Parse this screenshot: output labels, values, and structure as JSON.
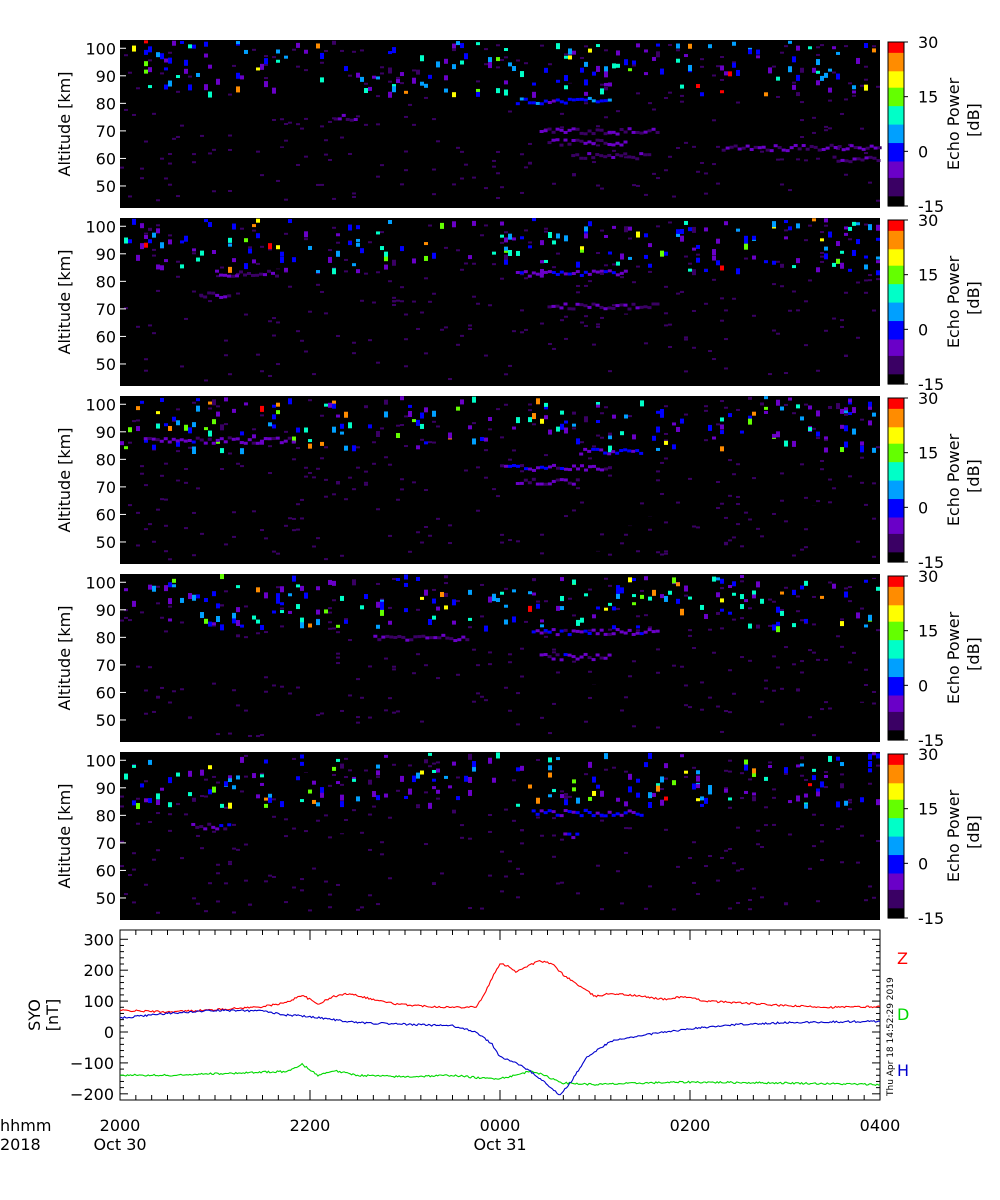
{
  "figure": {
    "timestamp": "Thu Apr 18 14:52:29 2019",
    "x_title_top": "hhmm",
    "x_title_bottom": "2018",
    "colorbar_label_line1": "Echo Power",
    "colorbar_label_line2": "[dB]",
    "colormap": [
      "#000000",
      "#3a0064",
      "#6a00c8",
      "#0000ff",
      "#00a0ff",
      "#00ffc8",
      "#64ff00",
      "#ffff00",
      "#ff8c00",
      "#ff0000"
    ]
  },
  "chart_data": [
    {
      "type": "heatmap",
      "panel": 1,
      "ylabel": "Altitude  [km]",
      "ylim": [
        42,
        103
      ],
      "yticks": [
        "50",
        "60",
        "70",
        "80",
        "90",
        "100"
      ],
      "zlim": [
        -15,
        30
      ],
      "cbar_ticks": [
        "-15",
        "0",
        "15",
        "30"
      ],
      "layers": [
        {
          "start": "2018-10-30T22:15",
          "end": "2018-10-30T22:30",
          "alt": 75,
          "db": -8
        },
        {
          "start": "2018-10-31T00:10",
          "end": "2018-10-31T01:10",
          "alt": 81,
          "db": -2
        },
        {
          "start": "2018-10-31T00:25",
          "end": "2018-10-31T01:40",
          "alt": 70,
          "db": -10
        },
        {
          "start": "2018-10-31T00:30",
          "end": "2018-10-31T01:20",
          "alt": 66,
          "db": -9
        },
        {
          "start": "2018-10-31T00:45",
          "end": "2018-10-31T01:35",
          "alt": 61,
          "db": -10
        },
        {
          "start": "2018-10-31T02:20",
          "end": "2018-10-31T04:00",
          "alt": 64,
          "db": -9
        },
        {
          "start": "2018-10-31T03:30",
          "end": "2018-10-31T04:00",
          "alt": 60,
          "db": -10
        }
      ]
    },
    {
      "type": "heatmap",
      "panel": 2,
      "ylabel": "Altitude  [km]",
      "ylim": [
        42,
        103
      ],
      "yticks": [
        "50",
        "60",
        "70",
        "80",
        "90",
        "100"
      ],
      "zlim": [
        -15,
        30
      ],
      "cbar_ticks": [
        "-15",
        "0",
        "15",
        "30"
      ],
      "layers": [
        {
          "start": "2018-10-30T21:00",
          "end": "2018-10-30T21:40",
          "alt": 83,
          "db": -9
        },
        {
          "start": "2018-10-30T20:50",
          "end": "2018-10-30T21:10",
          "alt": 75,
          "db": -10
        },
        {
          "start": "2018-10-31T00:10",
          "end": "2018-10-31T01:20",
          "alt": 83,
          "db": -4
        },
        {
          "start": "2018-10-31T00:30",
          "end": "2018-10-31T01:40",
          "alt": 71,
          "db": -10
        }
      ]
    },
    {
      "type": "heatmap",
      "panel": 3,
      "ylabel": "Altitude  [km]",
      "ylim": [
        42,
        103
      ],
      "yticks": [
        "50",
        "60",
        "70",
        "80",
        "90",
        "100"
      ],
      "zlim": [
        -15,
        30
      ],
      "cbar_ticks": [
        "-15",
        "0",
        "15",
        "30"
      ],
      "layers": [
        {
          "start": "2018-10-30T20:15",
          "end": "2018-10-30T21:50",
          "alt": 87,
          "db": -7
        },
        {
          "start": "2018-10-31T00:00",
          "end": "2018-10-31T01:10",
          "alt": 77,
          "db": -6
        },
        {
          "start": "2018-10-31T00:50",
          "end": "2018-10-31T01:30",
          "alt": 83,
          "db": -4
        },
        {
          "start": "2018-10-31T00:10",
          "end": "2018-10-31T00:50",
          "alt": 72,
          "db": -10
        }
      ]
    },
    {
      "type": "heatmap",
      "panel": 4,
      "ylabel": "Altitude  [km]",
      "ylim": [
        42,
        103
      ],
      "yticks": [
        "50",
        "60",
        "70",
        "80",
        "90",
        "100"
      ],
      "zlim": [
        -15,
        30
      ],
      "cbar_ticks": [
        "-15",
        "0",
        "15",
        "30"
      ],
      "layers": [
        {
          "start": "2018-10-31T00:20",
          "end": "2018-10-31T01:40",
          "alt": 82,
          "db": -6
        },
        {
          "start": "2018-10-31T00:25",
          "end": "2018-10-31T01:10",
          "alt": 73,
          "db": -7
        },
        {
          "start": "2018-10-30T22:40",
          "end": "2018-10-30T23:40",
          "alt": 80,
          "db": -10
        }
      ]
    },
    {
      "type": "heatmap",
      "panel": 5,
      "ylabel": "Altitude  [km]",
      "ylim": [
        42,
        103
      ],
      "yticks": [
        "50",
        "60",
        "70",
        "80",
        "90",
        "100"
      ],
      "zlim": [
        -15,
        30
      ],
      "cbar_ticks": [
        "-15",
        "0",
        "15",
        "30"
      ],
      "layers": [
        {
          "start": "2018-10-30T20:45",
          "end": "2018-10-30T21:10",
          "alt": 76,
          "db": -7
        },
        {
          "start": "2018-10-31T00:20",
          "end": "2018-10-31T01:30",
          "alt": 81,
          "db": -3
        },
        {
          "start": "2018-10-31T00:40",
          "end": "2018-10-31T00:50",
          "alt": 73,
          "db": -5
        }
      ]
    },
    {
      "type": "line",
      "ylabel_line1": "SYO",
      "ylabel_line2": "[nT]",
      "ylim": [
        -220,
        330
      ],
      "yticks": [
        {
          "v": 300,
          "label": "300"
        },
        {
          "v": 200,
          "label": "200"
        },
        {
          "v": 100,
          "label": "100"
        },
        {
          "v": 0,
          "label": "0"
        },
        {
          "v": -100,
          "label": "−100"
        },
        {
          "v": -200,
          "label": "−200"
        }
      ],
      "xlim": [
        "2018-10-30T20:00",
        "2018-10-31T04:00"
      ],
      "xticks": [
        {
          "t": "2018-10-30T20:00",
          "top": "2000",
          "bottom": "Oct 30"
        },
        {
          "t": "2018-10-30T22:00",
          "top": "2200",
          "bottom": ""
        },
        {
          "t": "2018-10-31T00:00",
          "top": "0000",
          "bottom": "Oct 31"
        },
        {
          "t": "2018-10-31T02:00",
          "top": "0200",
          "bottom": ""
        },
        {
          "t": "2018-10-31T04:00",
          "top": "0400",
          "bottom": ""
        }
      ],
      "series": [
        {
          "name": "Z",
          "color": "#ff0000",
          "points": [
            [
              "2018-10-30T20:00",
              70
            ],
            [
              "2018-10-30T20:30",
              65
            ],
            [
              "2018-10-30T21:00",
              72
            ],
            [
              "2018-10-30T21:30",
              82
            ],
            [
              "2018-10-30T21:45",
              95
            ],
            [
              "2018-10-30T21:55",
              120
            ],
            [
              "2018-10-30T22:05",
              90
            ],
            [
              "2018-10-30T22:15",
              115
            ],
            [
              "2018-10-30T22:25",
              125
            ],
            [
              "2018-10-30T22:40",
              105
            ],
            [
              "2018-10-30T22:55",
              90
            ],
            [
              "2018-10-30T23:15",
              83
            ],
            [
              "2018-10-30T23:30",
              80
            ],
            [
              "2018-10-30T23:45",
              82
            ],
            [
              "2018-10-30T23:50",
              120
            ],
            [
              "2018-10-30T23:55",
              175
            ],
            [
              "2018-10-31T00:00",
              220
            ],
            [
              "2018-10-31T00:05",
              215
            ],
            [
              "2018-10-31T00:10",
              195
            ],
            [
              "2018-10-31T00:18",
              215
            ],
            [
              "2018-10-31T00:25",
              230
            ],
            [
              "2018-10-31T00:33",
              220
            ],
            [
              "2018-10-31T00:40",
              185
            ],
            [
              "2018-10-31T00:50",
              150
            ],
            [
              "2018-10-31T01:00",
              115
            ],
            [
              "2018-10-31T01:10",
              125
            ],
            [
              "2018-10-31T01:25",
              118
            ],
            [
              "2018-10-31T01:45",
              105
            ],
            [
              "2018-10-31T01:55",
              115
            ],
            [
              "2018-10-31T02:10",
              100
            ],
            [
              "2018-10-31T02:30",
              95
            ],
            [
              "2018-10-31T03:00",
              85
            ],
            [
              "2018-10-31T03:30",
              80
            ],
            [
              "2018-10-31T04:00",
              82
            ]
          ]
        },
        {
          "name": "D",
          "color": "#00d800",
          "points": [
            [
              "2018-10-30T20:00",
              -140
            ],
            [
              "2018-10-30T20:30",
              -140
            ],
            [
              "2018-10-30T21:00",
              -135
            ],
            [
              "2018-10-30T21:30",
              -130
            ],
            [
              "2018-10-30T21:45",
              -128
            ],
            [
              "2018-10-30T21:55",
              -105
            ],
            [
              "2018-10-30T22:05",
              -140
            ],
            [
              "2018-10-30T22:15",
              -125
            ],
            [
              "2018-10-30T22:30",
              -140
            ],
            [
              "2018-10-30T23:00",
              -145
            ],
            [
              "2018-10-30T23:30",
              -140
            ],
            [
              "2018-10-30T23:50",
              -150
            ],
            [
              "2018-10-31T00:00",
              -150
            ],
            [
              "2018-10-31T00:10",
              -140
            ],
            [
              "2018-10-31T00:20",
              -125
            ],
            [
              "2018-10-31T00:30",
              -145
            ],
            [
              "2018-10-31T00:40",
              -165
            ],
            [
              "2018-10-31T01:00",
              -170
            ],
            [
              "2018-10-31T01:30",
              -165
            ],
            [
              "2018-10-31T02:00",
              -162
            ],
            [
              "2018-10-31T03:00",
              -165
            ],
            [
              "2018-10-31T04:00",
              -170
            ]
          ]
        },
        {
          "name": "H",
          "color": "#0000cc",
          "points": [
            [
              "2018-10-30T20:00",
              45
            ],
            [
              "2018-10-30T20:30",
              60
            ],
            [
              "2018-10-30T21:00",
              70
            ],
            [
              "2018-10-30T21:30",
              68
            ],
            [
              "2018-10-30T21:45",
              55
            ],
            [
              "2018-10-30T22:00",
              50
            ],
            [
              "2018-10-30T22:15",
              40
            ],
            [
              "2018-10-30T22:30",
              30
            ],
            [
              "2018-10-30T23:00",
              25
            ],
            [
              "2018-10-30T23:30",
              20
            ],
            [
              "2018-10-30T23:45",
              0
            ],
            [
              "2018-10-30T23:55",
              -40
            ],
            [
              "2018-10-31T00:00",
              -80
            ],
            [
              "2018-10-31T00:10",
              -100
            ],
            [
              "2018-10-31T00:20",
              -130
            ],
            [
              "2018-10-31T00:30",
              -170
            ],
            [
              "2018-10-31T00:38",
              -205
            ],
            [
              "2018-10-31T00:45",
              -160
            ],
            [
              "2018-10-31T00:55",
              -80
            ],
            [
              "2018-10-31T01:10",
              -30
            ],
            [
              "2018-10-31T01:30",
              -10
            ],
            [
              "2018-10-31T02:00",
              10
            ],
            [
              "2018-10-31T02:30",
              25
            ],
            [
              "2018-10-31T03:00",
              30
            ],
            [
              "2018-10-31T04:00",
              35
            ]
          ]
        }
      ]
    }
  ]
}
